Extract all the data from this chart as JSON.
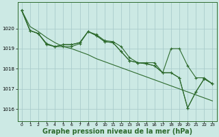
{
  "background_color": "#cce9e4",
  "grid_color": "#aacccc",
  "line_color": "#2d6a2d",
  "xlabel": "Graphe pression niveau de la mer (hPa)",
  "xlabel_fontsize": 7.0,
  "xlim": [
    -0.5,
    23.5
  ],
  "ylim": [
    1015.4,
    1021.3
  ],
  "yticks": [
    1016,
    1017,
    1018,
    1019,
    1020
  ],
  "xticks": [
    0,
    1,
    2,
    3,
    4,
    5,
    6,
    7,
    8,
    9,
    10,
    11,
    12,
    13,
    14,
    15,
    16,
    17,
    18,
    19,
    20,
    21,
    22,
    23
  ],
  "series_no_marker": [
    [
      1020.9,
      1020.1,
      1019.85,
      1019.55,
      1019.3,
      1019.1,
      1019.0,
      1018.85,
      1018.7,
      1018.5,
      1018.35,
      1018.2,
      1018.05,
      1017.9,
      1017.75,
      1017.6,
      1017.45,
      1017.3,
      1017.15,
      1017.0,
      1016.85,
      1016.7,
      1016.55,
      1016.4
    ]
  ],
  "series_marker": [
    [
      1020.9,
      1019.9,
      1019.75,
      1019.2,
      1019.1,
      1019.2,
      1019.2,
      1019.3,
      1019.85,
      1019.7,
      1019.4,
      1019.35,
      1019.1,
      1018.55,
      1018.3,
      1018.3,
      1018.3,
      1017.8,
      1019.0,
      1019.0,
      1018.15,
      1017.55,
      1017.55,
      1017.25
    ],
    [
      1020.9,
      1019.9,
      1019.75,
      1019.25,
      1019.1,
      1019.2,
      1019.2,
      1019.3,
      1019.85,
      1019.65,
      1019.35,
      1019.3,
      1018.85,
      1018.4,
      1018.3,
      1018.25,
      1018.15,
      1017.8,
      1017.8,
      1017.55,
      1016.05,
      1016.85,
      1017.5,
      1017.25
    ],
    [
      1020.9,
      1019.9,
      1019.75,
      1019.25,
      1019.1,
      1019.1,
      1019.1,
      1019.25,
      1019.85,
      1019.65,
      1019.35,
      1019.3,
      1018.85,
      1018.4,
      1018.3,
      1018.25,
      1018.15,
      1017.8,
      1017.8,
      1017.55,
      1016.05,
      1016.85,
      1017.5,
      1017.25
    ]
  ]
}
